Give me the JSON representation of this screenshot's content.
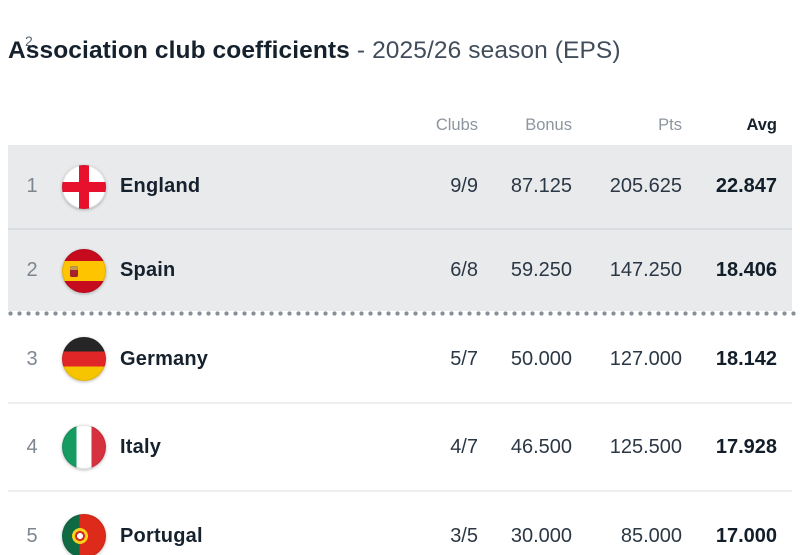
{
  "stray": {
    "partial_rank": "2"
  },
  "title": {
    "main": "Association club coefficients",
    "sub": "- 2025/26 season (EPS)"
  },
  "table": {
    "headers": {
      "clubs": "Clubs",
      "bonus": "Bonus",
      "pts": "Pts",
      "avg": "Avg"
    },
    "rows": [
      {
        "rank": "1",
        "flag": "england",
        "flag_icon": "england-flag-icon",
        "country": "England",
        "clubs": "9/9",
        "bonus": "87.125",
        "pts": "205.625",
        "avg": "22.847",
        "highlighted": true
      },
      {
        "rank": "2",
        "flag": "spain",
        "flag_icon": "spain-flag-icon",
        "country": "Spain",
        "clubs": "6/8",
        "bonus": "59.250",
        "pts": "147.250",
        "avg": "18.406",
        "highlighted": true
      },
      {
        "rank": "3",
        "flag": "germany",
        "flag_icon": "germany-flag-icon",
        "country": "Germany",
        "clubs": "5/7",
        "bonus": "50.000",
        "pts": "127.000",
        "avg": "18.142",
        "highlighted": false
      },
      {
        "rank": "4",
        "flag": "italy",
        "flag_icon": "italy-flag-icon",
        "country": "Italy",
        "clubs": "4/7",
        "bonus": "46.500",
        "pts": "125.500",
        "avg": "17.928",
        "highlighted": false
      },
      {
        "rank": "5",
        "flag": "portugal",
        "flag_icon": "portugal-flag-icon",
        "country": "Portugal",
        "clubs": "3/5",
        "bonus": "30.000",
        "pts": "85.000",
        "avg": "17.000",
        "highlighted": false
      }
    ]
  },
  "colors": {
    "highlight_row_bg": "#e8eaec",
    "dark_text": "#16212e",
    "muted_text": "#8d959e",
    "cutoff_dots": "#87909a"
  }
}
